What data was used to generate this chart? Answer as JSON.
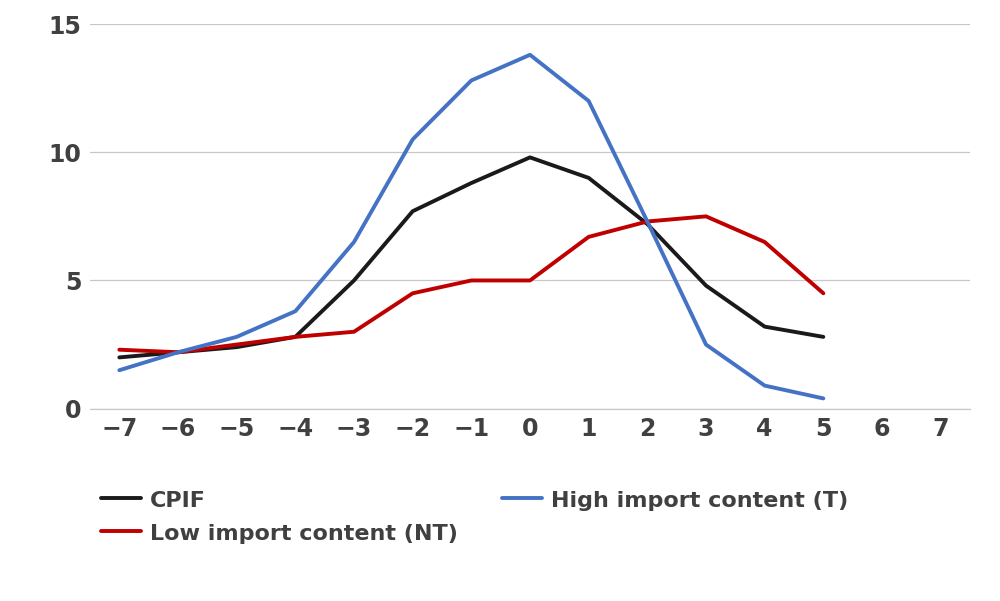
{
  "x": [
    -7,
    -6,
    -5,
    -4,
    -3,
    -2,
    -1,
    0,
    1,
    2,
    3,
    4,
    5
  ],
  "cpif": [
    2.0,
    2.2,
    2.4,
    2.8,
    5.0,
    7.7,
    8.8,
    9.8,
    9.0,
    7.2,
    4.8,
    3.2,
    2.8
  ],
  "low_import": [
    2.3,
    2.2,
    2.5,
    2.8,
    3.0,
    4.5,
    5.0,
    5.0,
    6.7,
    7.3,
    7.5,
    6.5,
    4.5
  ],
  "high_import": [
    1.5,
    2.2,
    2.8,
    3.8,
    6.5,
    10.5,
    12.8,
    13.8,
    12.0,
    7.3,
    2.5,
    0.9,
    0.4
  ],
  "cpif_color": "#1a1a1a",
  "low_import_color": "#c00000",
  "high_import_color": "#4472c4",
  "line_width": 2.8,
  "ylim": [
    0,
    15
  ],
  "xlim": [
    -7.5,
    7.5
  ],
  "yticks": [
    0,
    5,
    10,
    15
  ],
  "xticks": [
    -7,
    -6,
    -5,
    -4,
    -3,
    -2,
    -1,
    0,
    1,
    2,
    3,
    4,
    5,
    6,
    7
  ],
  "legend_cpif": "CPIF",
  "legend_low": "Low import content (NT)",
  "legend_high": "High import content (T)",
  "background_color": "#ffffff",
  "grid_color": "#c8c8c8",
  "tick_fontsize": 17,
  "tick_color": "#404040",
  "legend_fontsize": 16
}
